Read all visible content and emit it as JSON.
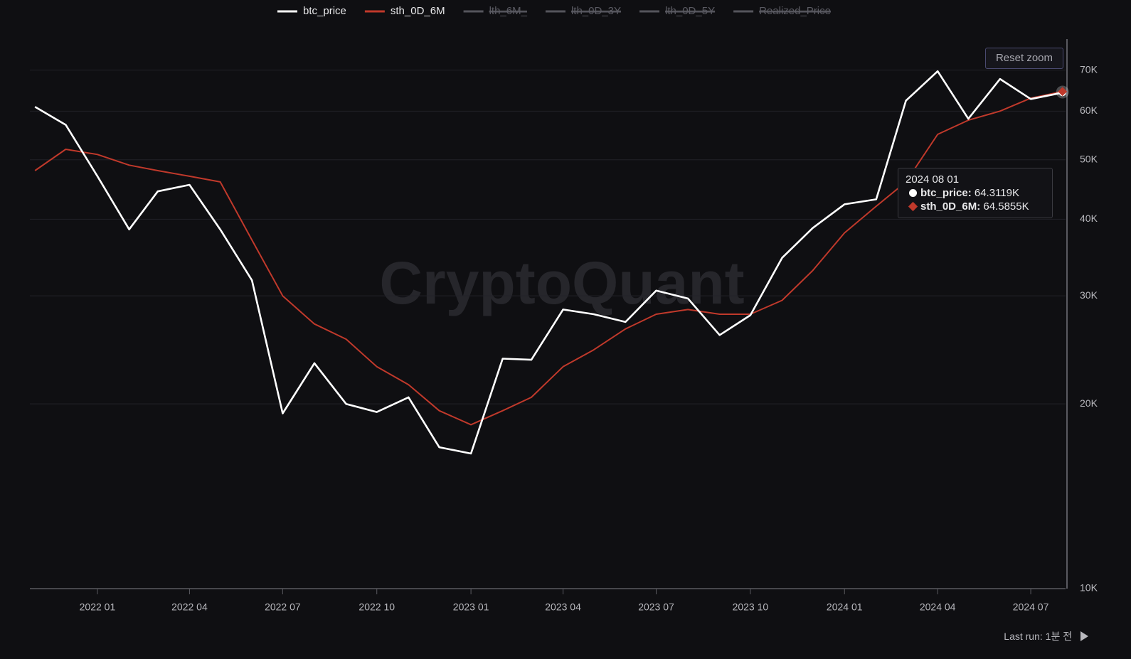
{
  "chart_data": {
    "type": "line",
    "log_scale": true,
    "grid": true,
    "legend_position": "top",
    "watermark": "CryptoQuant",
    "x": [
      "2021 11 01",
      "2021 12 01",
      "2022 01 01",
      "2022 02 01",
      "2022 03 01",
      "2022 04 01",
      "2022 05 01",
      "2022 06 01",
      "2022 07 01",
      "2022 08 01",
      "2022 09 01",
      "2022 10 01",
      "2022 11 01",
      "2022 12 01",
      "2023 01 01",
      "2023 02 01",
      "2023 03 01",
      "2023 04 01",
      "2023 05 01",
      "2023 06 01",
      "2023 07 01",
      "2023 08 01",
      "2023 09 01",
      "2023 10 01",
      "2023 11 01",
      "2023 12 01",
      "2024 01 01",
      "2024 02 01",
      "2024 03 01",
      "2024 04 01",
      "2024 05 01",
      "2024 06 01",
      "2024 07 01",
      "2024 08 01"
    ],
    "series": [
      {
        "name": "btc_price",
        "color": "#ffffff",
        "values": [
          61000,
          57000,
          47000,
          38500,
          44400,
          45500,
          38500,
          31800,
          19300,
          23300,
          20000,
          19400,
          20500,
          17000,
          16600,
          23700,
          23600,
          28500,
          28000,
          27200,
          30600,
          29700,
          25900,
          27900,
          34600,
          38700,
          42300,
          43100,
          62400,
          69700,
          58300,
          67700,
          62800,
          64311.9
        ]
      },
      {
        "name": "sth_0D_6M",
        "color": "#c0392b",
        "values": [
          48000,
          52000,
          51000,
          49000,
          48000,
          47000,
          46000,
          37000,
          30000,
          27000,
          25500,
          23000,
          21500,
          19500,
          18500,
          19500,
          20500,
          23000,
          24500,
          26500,
          28000,
          28500,
          28000,
          28000,
          29500,
          33000,
          38000,
          42000,
          46000,
          55000,
          58000,
          60000,
          63000,
          64585.5
        ]
      }
    ],
    "hidden_series": [
      {
        "name": "lth_6M_",
        "color": "#55555c"
      },
      {
        "name": "lth_0D_3Y",
        "color": "#55555c"
      },
      {
        "name": "lth_0D_5Y",
        "color": "#55555c"
      },
      {
        "name": "Realized_Price",
        "color": "#55555c"
      }
    ],
    "xlim": [
      "2021 10 27",
      "2024 08 04"
    ],
    "xticks": [
      {
        "value": "2022 01 01",
        "label": "2022 01"
      },
      {
        "value": "2022 04 01",
        "label": "2022 04"
      },
      {
        "value": "2022 07 01",
        "label": "2022 07"
      },
      {
        "value": "2022 10 01",
        "label": "2022 10"
      },
      {
        "value": "2023 01 01",
        "label": "2023 01"
      },
      {
        "value": "2023 04 01",
        "label": "2023 04"
      },
      {
        "value": "2023 07 01",
        "label": "2023 07"
      },
      {
        "value": "2023 10 01",
        "label": "2023 10"
      },
      {
        "value": "2024 01 01",
        "label": "2024 01"
      },
      {
        "value": "2024 04 01",
        "label": "2024 04"
      },
      {
        "value": "2024 07 01",
        "label": "2024 07"
      }
    ],
    "ylim": [
      10000,
      78000
    ],
    "yticks": [
      {
        "value": 10000,
        "label": "10K"
      },
      {
        "value": 20000,
        "label": "20K"
      },
      {
        "value": 30000,
        "label": "30K"
      },
      {
        "value": 40000,
        "label": "40K"
      },
      {
        "value": 50000,
        "label": "50K"
      },
      {
        "value": 60000,
        "label": "60K"
      },
      {
        "value": 70000,
        "label": "70K"
      }
    ],
    "tooltip_labels": [
      "64.3119K",
      "64.5855K"
    ],
    "reset_button": "Reset zoom",
    "footer": "Last run: 1분 전"
  }
}
